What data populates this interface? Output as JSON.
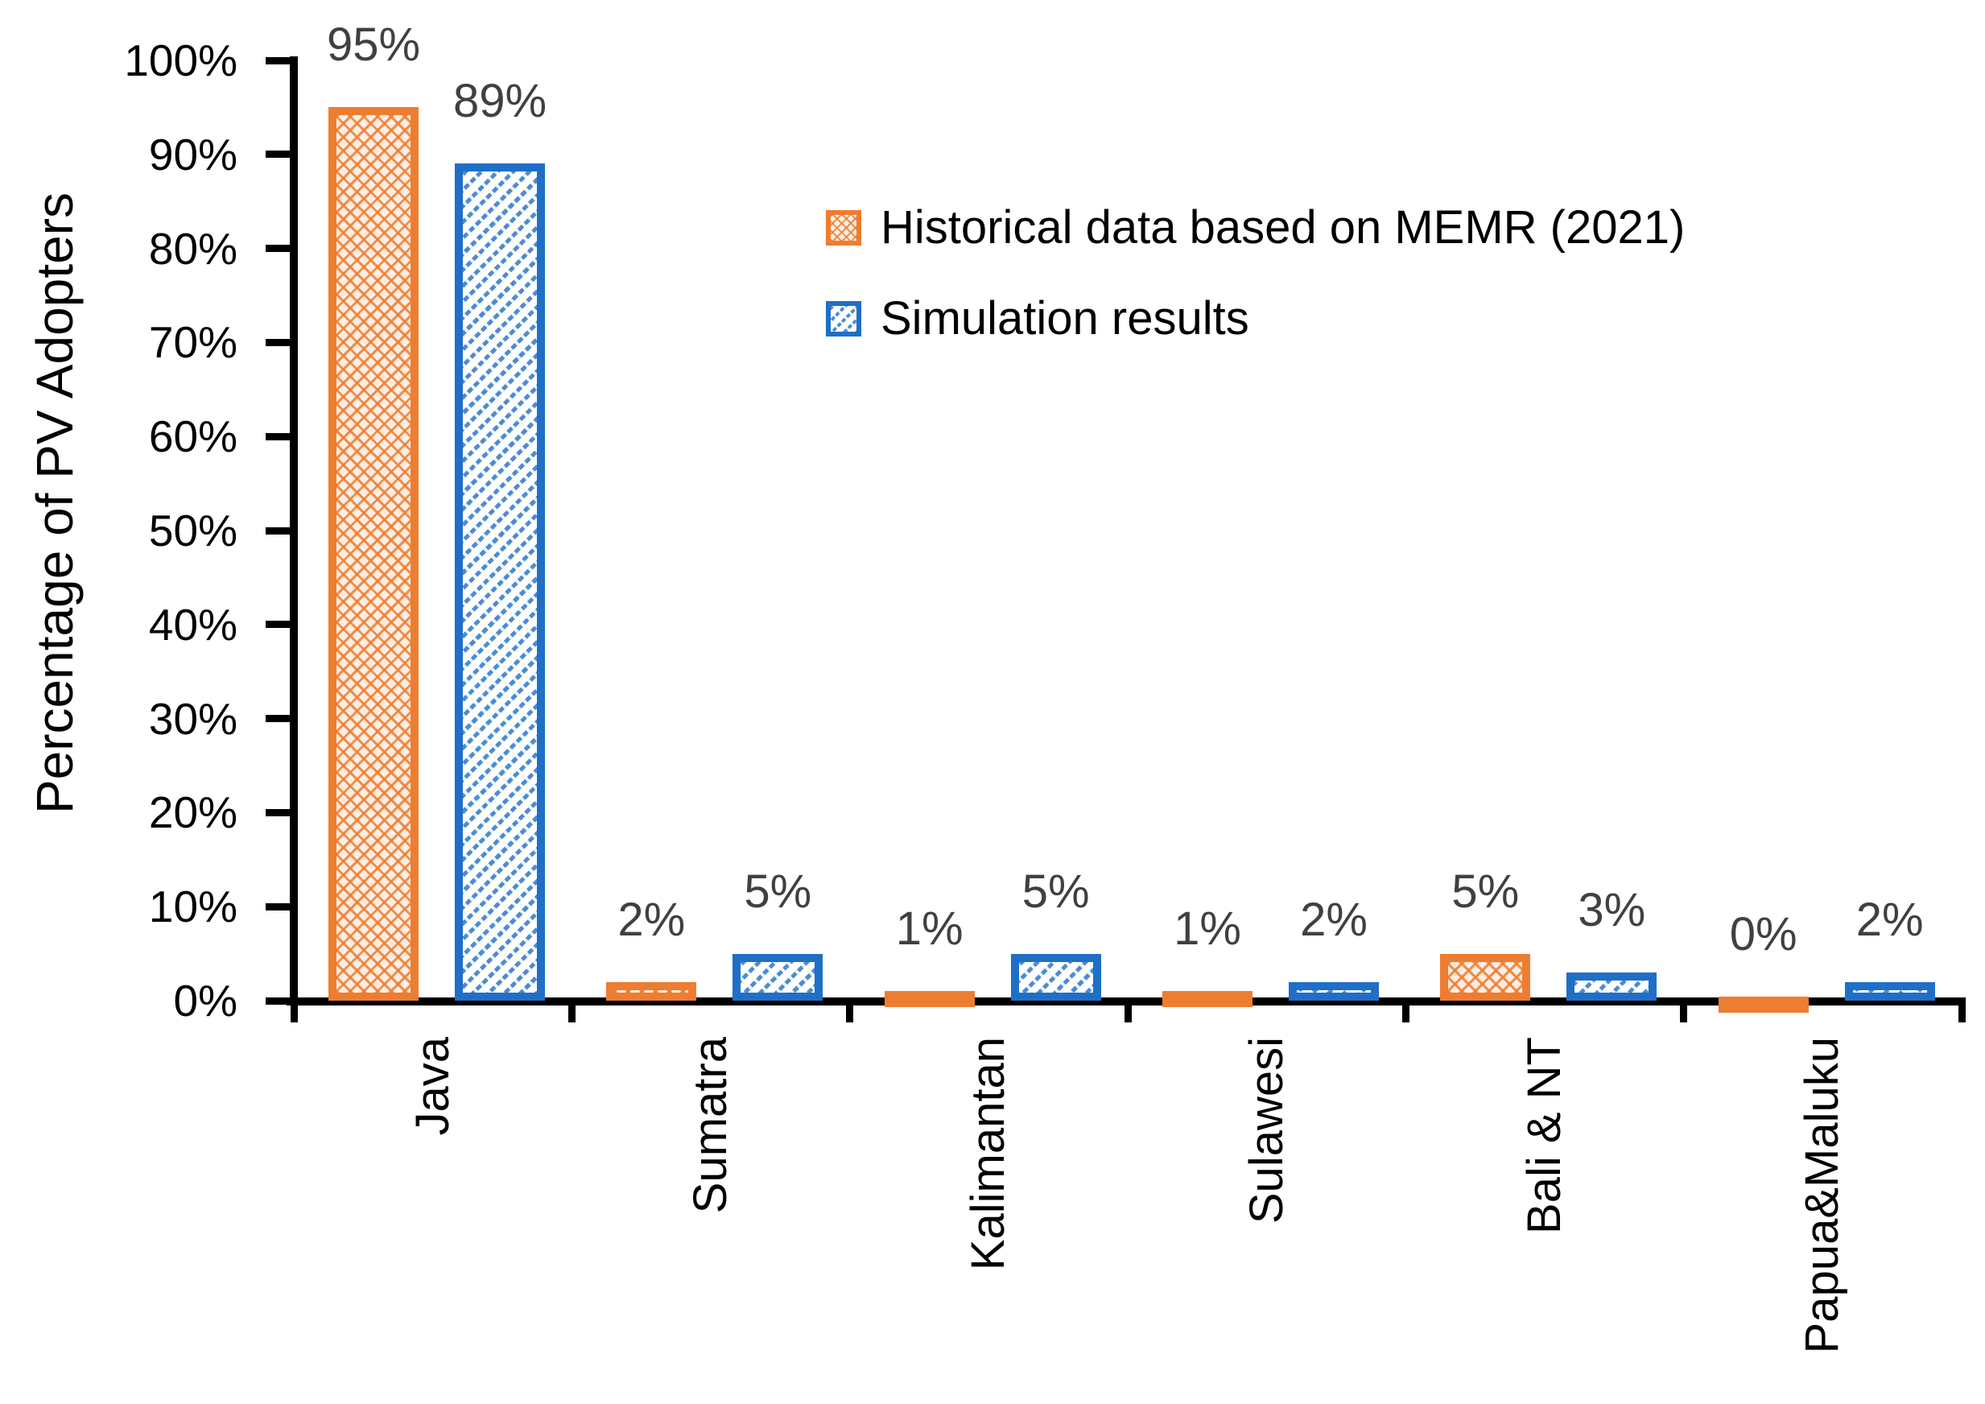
{
  "chart_data": {
    "type": "bar",
    "title": "",
    "ylabel": "Percentage of PV Adopters",
    "xlabel": "",
    "categories": [
      "Java",
      "Sumatra",
      "Kalimantan",
      "Sulawesi",
      "Bali & NT",
      "Papua&Maluku"
    ],
    "series": [
      {
        "name": "Historical data based on MEMR (2021)",
        "pattern": "dotted-diamond",
        "color": "#ED7D31",
        "values": [
          95,
          2,
          1,
          1,
          5,
          0
        ],
        "labels": [
          "95%",
          "2%",
          "1%",
          "1%",
          "5%",
          "0%"
        ]
      },
      {
        "name": "Simulation results",
        "pattern": "diagonal-hatch",
        "color": "#1F6FC7",
        "values": [
          89,
          5,
          5,
          2,
          3,
          2
        ],
        "labels": [
          "89%",
          "5%",
          "5%",
          "2%",
          "3%",
          "2%"
        ]
      }
    ],
    "value_suffix": "%",
    "ylim": [
      0,
      100
    ],
    "ytick_step": 10,
    "ytick_labels": [
      "0%",
      "10%",
      "20%",
      "30%",
      "40%",
      "50%",
      "60%",
      "70%",
      "80%",
      "90%",
      "100%"
    ],
    "grid": false,
    "legend_position": "upper-right-inside",
    "data_label_color": "#404040",
    "axis_color": "#000000"
  }
}
